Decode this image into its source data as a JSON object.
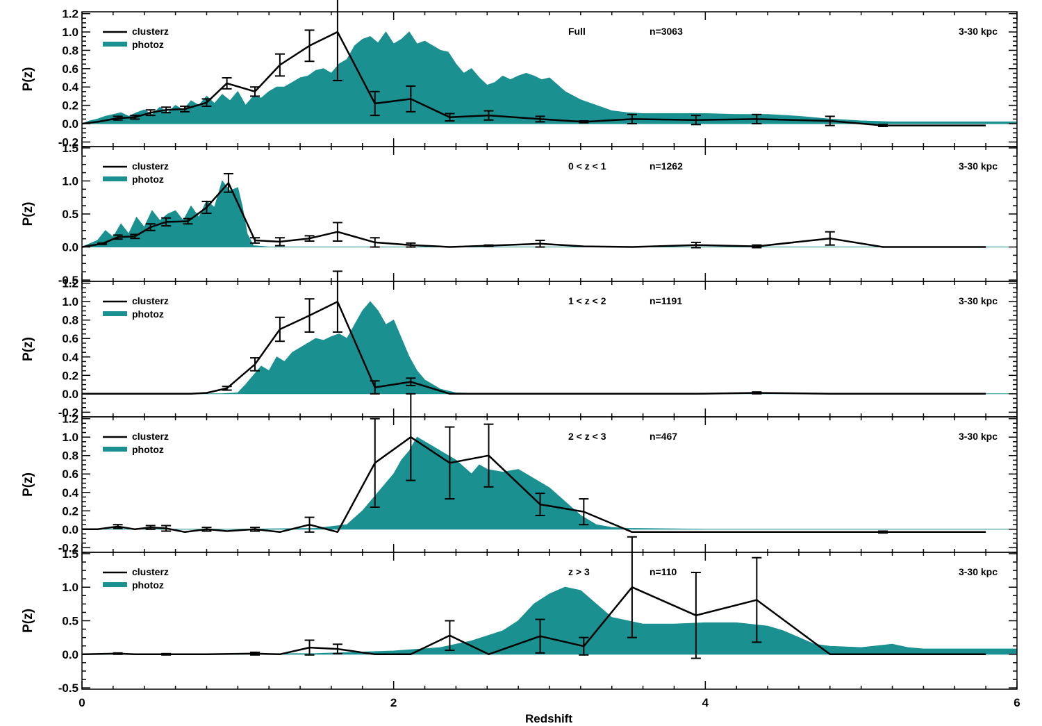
{
  "colors": {
    "photoz": "#1a9090",
    "clusterz": "#000000",
    "axis": "#000000"
  },
  "figure": {
    "xlabel": "Redshift",
    "x_ticks": [
      0,
      2,
      4,
      6
    ],
    "x_tick_labels": [
      "0",
      "2",
      "4",
      "6"
    ],
    "xlim": [
      0,
      6
    ]
  },
  "chart_data": [
    {
      "type": "line",
      "panel_id": "full",
      "info": "Full",
      "n_label": "n=3063",
      "aperture": "3-30 kpc",
      "ylabel": "P(z)",
      "legend": [
        "clusterz",
        "photoz"
      ],
      "legend_position": "top-left",
      "ylim": [
        -0.25,
        1.22
      ],
      "y_ticks": [
        -0.2,
        0.0,
        0.2,
        0.4,
        0.6,
        0.8,
        1.0,
        1.2
      ],
      "y_tick_labels": [
        "-0.2",
        "0.0",
        "0.2",
        "0.4",
        "0.6",
        "0.8",
        "1.0",
        "1.2"
      ],
      "series": [
        {
          "name": "clusterz",
          "x": [
            0.0,
            0.1,
            0.23,
            0.34,
            0.44,
            0.54,
            0.66,
            0.8,
            0.93,
            1.11,
            1.27,
            1.46,
            1.64,
            1.88,
            2.11,
            2.36,
            2.61,
            2.94,
            3.22,
            3.53,
            3.94,
            4.33,
            4.8,
            5.14,
            5.8
          ],
          "y": [
            0.0,
            0.02,
            0.06,
            0.07,
            0.12,
            0.15,
            0.16,
            0.23,
            0.44,
            0.35,
            0.64,
            0.85,
            1.0,
            0.22,
            0.27,
            0.07,
            0.09,
            0.05,
            0.02,
            0.05,
            0.04,
            0.05,
            0.03,
            -0.02,
            -0.02
          ],
          "err": [
            0,
            0,
            0.02,
            0.02,
            0.03,
            0.03,
            0.03,
            0.04,
            0.06,
            0.05,
            0.12,
            0.17,
            0.53,
            0.13,
            0.14,
            0.04,
            0.05,
            0.03,
            0.01,
            0.05,
            0.05,
            0.05,
            0.05,
            0.01,
            0
          ]
        },
        {
          "name": "photoz",
          "x": [
            0.0,
            0.05,
            0.1,
            0.15,
            0.2,
            0.25,
            0.3,
            0.35,
            0.4,
            0.45,
            0.5,
            0.55,
            0.6,
            0.65,
            0.7,
            0.75,
            0.8,
            0.85,
            0.9,
            0.95,
            1.0,
            1.05,
            1.1,
            1.15,
            1.2,
            1.25,
            1.3,
            1.35,
            1.4,
            1.45,
            1.5,
            1.55,
            1.6,
            1.65,
            1.7,
            1.75,
            1.8,
            1.85,
            1.9,
            1.95,
            2.0,
            2.05,
            2.1,
            2.15,
            2.2,
            2.25,
            2.3,
            2.35,
            2.4,
            2.45,
            2.5,
            2.55,
            2.6,
            2.65,
            2.7,
            2.75,
            2.8,
            2.85,
            2.9,
            2.95,
            3.0,
            3.1,
            3.2,
            3.3,
            3.4,
            3.5,
            3.6,
            3.8,
            4.0,
            4.2,
            4.4,
            4.6,
            4.8,
            5.0,
            5.2,
            5.4,
            5.6,
            5.8,
            6.0
          ],
          "y": [
            0.0,
            0.03,
            0.05,
            0.08,
            0.1,
            0.12,
            0.08,
            0.12,
            0.15,
            0.1,
            0.18,
            0.12,
            0.2,
            0.15,
            0.25,
            0.2,
            0.3,
            0.22,
            0.32,
            0.25,
            0.35,
            0.2,
            0.3,
            0.28,
            0.35,
            0.4,
            0.4,
            0.45,
            0.5,
            0.52,
            0.58,
            0.6,
            0.55,
            0.65,
            0.7,
            0.85,
            0.92,
            0.95,
            0.88,
            1.0,
            0.87,
            0.92,
            1.0,
            0.87,
            0.9,
            0.85,
            0.8,
            0.78,
            0.65,
            0.55,
            0.6,
            0.5,
            0.42,
            0.45,
            0.52,
            0.48,
            0.52,
            0.55,
            0.52,
            0.48,
            0.5,
            0.35,
            0.26,
            0.2,
            0.14,
            0.12,
            0.11,
            0.11,
            0.11,
            0.1,
            0.1,
            0.08,
            0.05,
            0.03,
            0.02,
            0.02,
            0.02,
            0.02,
            0.02
          ]
        }
      ]
    },
    {
      "type": "line",
      "panel_id": "z0-1",
      "info": "0 < z < 1",
      "n_label": "n=1262",
      "aperture": "3-30 kpc",
      "ylabel": "P(z)",
      "legend": [
        "clusterz",
        "photoz"
      ],
      "legend_position": "top-left",
      "ylim": [
        -0.52,
        1.52
      ],
      "y_ticks": [
        -0.5,
        0.0,
        0.5,
        1.0,
        1.5
      ],
      "y_tick_labels": [
        "-0.5",
        "0.0",
        "0.5",
        "1.0",
        "1.5"
      ],
      "series": [
        {
          "name": "clusterz",
          "x": [
            0.0,
            0.13,
            0.23,
            0.34,
            0.44,
            0.54,
            0.68,
            0.8,
            0.94,
            1.11,
            1.27,
            1.46,
            1.64,
            1.88,
            2.11,
            2.36,
            2.61,
            2.94,
            3.22,
            3.53,
            3.94,
            4.33,
            4.8,
            5.14,
            5.8
          ],
          "y": [
            0.0,
            0.05,
            0.15,
            0.16,
            0.3,
            0.38,
            0.39,
            0.6,
            0.97,
            0.1,
            0.08,
            0.13,
            0.23,
            0.07,
            0.03,
            0.0,
            0.02,
            0.05,
            0.01,
            0.0,
            0.03,
            0.01,
            0.13,
            0.0,
            0.0
          ],
          "err": [
            0,
            0.01,
            0.03,
            0.03,
            0.05,
            0.06,
            0.04,
            0.09,
            0.14,
            0.04,
            0.06,
            0.04,
            0.14,
            0.07,
            0.03,
            0,
            0.01,
            0.05,
            0,
            0,
            0.04,
            0.02,
            0.1,
            0,
            0
          ]
        },
        {
          "name": "photoz",
          "x": [
            0.0,
            0.05,
            0.1,
            0.15,
            0.2,
            0.25,
            0.3,
            0.35,
            0.4,
            0.45,
            0.5,
            0.55,
            0.6,
            0.65,
            0.7,
            0.75,
            0.8,
            0.85,
            0.9,
            0.95,
            1.0,
            1.03,
            1.06,
            1.1,
            1.2,
            1.5,
            2.0,
            3.0,
            4.0,
            5.0,
            6.0
          ],
          "y": [
            0.0,
            0.05,
            0.1,
            0.25,
            0.15,
            0.35,
            0.2,
            0.45,
            0.3,
            0.55,
            0.4,
            0.5,
            0.55,
            0.4,
            0.62,
            0.45,
            0.7,
            0.6,
            1.0,
            0.85,
            0.9,
            0.6,
            0.2,
            0.02,
            0.0,
            0.0,
            0.0,
            0.0,
            0.0,
            0.0,
            0.0
          ]
        }
      ]
    },
    {
      "type": "line",
      "panel_id": "z1-2",
      "info": "1 < z < 2",
      "n_label": "n=1191",
      "aperture": "3-30 kpc",
      "ylabel": "P(z)",
      "legend": [
        "clusterz",
        "photoz"
      ],
      "legend_position": "top-left",
      "ylim": [
        -0.25,
        1.22
      ],
      "y_ticks": [
        -0.2,
        0.0,
        0.2,
        0.4,
        0.6,
        0.8,
        1.0,
        1.2
      ],
      "y_tick_labels": [
        "-0.2",
        "0.0",
        "0.2",
        "0.4",
        "0.6",
        "0.8",
        "1.0",
        "1.2"
      ],
      "series": [
        {
          "name": "clusterz",
          "x": [
            0.0,
            0.3,
            0.44,
            0.54,
            0.7,
            0.8,
            0.93,
            1.11,
            1.27,
            1.46,
            1.64,
            1.88,
            2.11,
            2.36,
            2.61,
            2.94,
            3.22,
            3.53,
            3.94,
            4.33,
            4.8,
            5.14,
            5.8
          ],
          "y": [
            0.0,
            0.0,
            0.0,
            0.0,
            0.0,
            0.01,
            0.06,
            0.32,
            0.7,
            0.85,
            1.0,
            0.07,
            0.13,
            0.0,
            0.0,
            0.0,
            0.0,
            0.0,
            0.0,
            0.01,
            0.0,
            0.0,
            0.0
          ],
          "err": [
            0,
            0,
            0,
            0,
            0,
            0,
            0.02,
            0.07,
            0.13,
            0.18,
            0.33,
            0.07,
            0.04,
            0,
            0,
            0,
            0,
            0,
            0,
            0.01,
            0,
            0,
            0
          ]
        },
        {
          "name": "photoz",
          "x": [
            0.0,
            0.9,
            1.0,
            1.05,
            1.1,
            1.15,
            1.2,
            1.25,
            1.3,
            1.35,
            1.4,
            1.45,
            1.5,
            1.55,
            1.6,
            1.65,
            1.7,
            1.75,
            1.8,
            1.85,
            1.9,
            1.95,
            2.0,
            2.05,
            2.1,
            2.15,
            2.2,
            2.3,
            2.4,
            2.6,
            3.0,
            4.0,
            5.0,
            6.0
          ],
          "y": [
            0.0,
            0.0,
            0.01,
            0.1,
            0.2,
            0.3,
            0.25,
            0.4,
            0.35,
            0.45,
            0.5,
            0.55,
            0.6,
            0.58,
            0.62,
            0.65,
            0.6,
            0.75,
            0.9,
            1.0,
            0.9,
            0.75,
            0.8,
            0.6,
            0.4,
            0.25,
            0.15,
            0.05,
            0.01,
            0.0,
            0.0,
            0.0,
            0.0,
            0.0
          ]
        }
      ]
    },
    {
      "type": "line",
      "panel_id": "z2-3",
      "info": "2 < z < 3",
      "n_label": "n=467",
      "aperture": "3-30 kpc",
      "ylabel": "P(z)",
      "legend": [
        "clusterz",
        "photoz"
      ],
      "legend_position": "top-left",
      "ylim": [
        -0.25,
        1.22
      ],
      "y_ticks": [
        -0.2,
        0.0,
        0.2,
        0.4,
        0.6,
        0.8,
        1.0,
        1.2
      ],
      "y_tick_labels": [
        "-0.2",
        "0.0",
        "0.2",
        "0.4",
        "0.6",
        "0.8",
        "1.0",
        "1.2"
      ],
      "series": [
        {
          "name": "clusterz",
          "x": [
            0.0,
            0.1,
            0.23,
            0.34,
            0.44,
            0.54,
            0.66,
            0.8,
            0.93,
            1.11,
            1.27,
            1.46,
            1.64,
            1.88,
            2.11,
            2.36,
            2.61,
            2.94,
            3.22,
            3.53,
            3.94,
            4.33,
            4.8,
            5.14,
            5.8
          ],
          "y": [
            0.0,
            0.0,
            0.03,
            0.0,
            0.02,
            0.01,
            -0.03,
            0.0,
            -0.02,
            0.0,
            -0.03,
            0.05,
            -0.03,
            0.72,
            1.0,
            0.72,
            0.8,
            0.27,
            0.19,
            -0.03,
            -0.03,
            -0.03,
            -0.03,
            -0.03,
            -0.03
          ],
          "err": [
            0,
            0,
            0.02,
            0,
            0.02,
            0.03,
            0,
            0.02,
            0,
            0.02,
            0,
            0.08,
            0,
            0.48,
            0.47,
            0.39,
            0.34,
            0.12,
            0.14,
            0,
            0,
            0,
            0,
            0.01,
            0
          ]
        },
        {
          "name": "photoz",
          "x": [
            0.0,
            1.0,
            1.5,
            1.7,
            1.8,
            1.9,
            2.0,
            2.05,
            2.1,
            2.15,
            2.2,
            2.3,
            2.4,
            2.5,
            2.55,
            2.6,
            2.7,
            2.8,
            2.9,
            3.0,
            3.1,
            3.2,
            3.3,
            3.4,
            3.5,
            4.0,
            5.0,
            6.0
          ],
          "y": [
            0.0,
            0.0,
            0.01,
            0.05,
            0.2,
            0.4,
            0.6,
            0.75,
            0.85,
            1.0,
            0.95,
            0.85,
            0.75,
            0.6,
            0.7,
            0.65,
            0.62,
            0.65,
            0.55,
            0.45,
            0.3,
            0.15,
            0.05,
            0.02,
            0.01,
            0.0,
            0.0,
            0.0
          ]
        }
      ]
    },
    {
      "type": "line",
      "panel_id": "z3plus",
      "info": "z > 3",
      "n_label": "n=110",
      "aperture": "3-30 kpc",
      "ylabel": "P(z)",
      "legend": [
        "clusterz",
        "photoz"
      ],
      "legend_position": "top-left",
      "ylim": [
        -0.52,
        1.52
      ],
      "y_ticks": [
        -0.5,
        0.0,
        0.5,
        1.0,
        1.5
      ],
      "y_tick_labels": [
        "-0.5",
        "0.0",
        "0.5",
        "1.0",
        "1.5"
      ],
      "series": [
        {
          "name": "clusterz",
          "x": [
            0.0,
            0.23,
            0.34,
            0.54,
            0.8,
            1.11,
            1.27,
            1.46,
            1.64,
            1.88,
            2.11,
            2.36,
            2.61,
            2.94,
            3.22,
            3.53,
            3.94,
            4.33,
            4.8,
            5.14,
            5.8
          ],
          "y": [
            0.0,
            0.01,
            0.0,
            0.0,
            0.0,
            0.01,
            0.0,
            0.1,
            0.08,
            0.0,
            0.0,
            0.28,
            0.0,
            0.27,
            0.12,
            1.0,
            0.58,
            0.81,
            0.0,
            0.0,
            0.0
          ],
          "err": [
            0,
            0.01,
            0,
            0.01,
            0,
            0.02,
            0,
            0.11,
            0.07,
            0,
            0,
            0.22,
            0,
            0.25,
            0.13,
            0.75,
            0.64,
            0.63,
            0,
            0,
            0
          ]
        },
        {
          "name": "photoz",
          "x": [
            0.0,
            1.5,
            2.0,
            2.3,
            2.5,
            2.7,
            2.8,
            2.9,
            3.0,
            3.1,
            3.2,
            3.3,
            3.4,
            3.5,
            3.6,
            3.7,
            3.8,
            4.0,
            4.2,
            4.4,
            4.5,
            4.6,
            4.7,
            4.8,
            5.0,
            5.2,
            5.3,
            5.4,
            5.6,
            6.0
          ],
          "y": [
            0.0,
            0.01,
            0.05,
            0.1,
            0.2,
            0.35,
            0.5,
            0.75,
            0.9,
            1.0,
            0.95,
            0.75,
            0.55,
            0.5,
            0.45,
            0.45,
            0.45,
            0.47,
            0.47,
            0.42,
            0.35,
            0.25,
            0.15,
            0.12,
            0.1,
            0.15,
            0.1,
            0.08,
            0.08,
            0.08
          ]
        }
      ]
    }
  ]
}
